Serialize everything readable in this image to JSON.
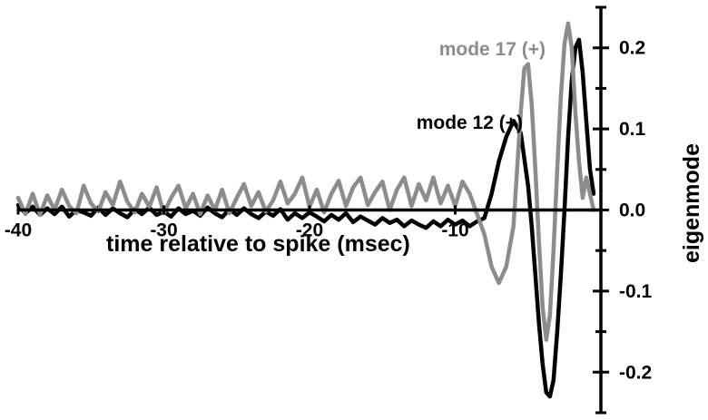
{
  "chart_data": {
    "type": "line",
    "title": "",
    "xlabel": "time relative to spike (msec)",
    "ylabel": "eigenmode",
    "xlim": [
      -40,
      0
    ],
    "ylim": [
      -0.25,
      0.25
    ],
    "x_ticks": [
      -40,
      -30,
      -20,
      -10
    ],
    "x_tick_labels": [
      "-40",
      "-30",
      "-20",
      "-10"
    ],
    "y_ticks": [
      -0.2,
      -0.1,
      0.0,
      0.1,
      0.2
    ],
    "y_tick_labels": [
      "-0.2",
      "-0.1",
      "0.0",
      "0.1",
      "0.2"
    ],
    "grid": false,
    "legend": "inline labels",
    "x_axis_position": "y=0",
    "y_axis_position": "right",
    "series": [
      {
        "name": "mode 12 (+)",
        "color": "#000000",
        "x": [
          -40.0,
          -39.5,
          -39.0,
          -38.5,
          -38.0,
          -37.5,
          -37.0,
          -36.5,
          -36.0,
          -35.5,
          -35.0,
          -34.5,
          -34.0,
          -33.5,
          -33.0,
          -32.5,
          -32.0,
          -31.5,
          -31.0,
          -30.5,
          -30.0,
          -29.5,
          -29.0,
          -28.5,
          -28.0,
          -27.5,
          -27.0,
          -26.5,
          -26.0,
          -25.5,
          -25.0,
          -24.5,
          -24.0,
          -23.5,
          -23.0,
          -22.5,
          -22.0,
          -21.5,
          -21.0,
          -20.5,
          -20.0,
          -19.5,
          -19.0,
          -18.5,
          -18.0,
          -17.5,
          -17.0,
          -16.5,
          -16.0,
          -15.5,
          -15.0,
          -14.5,
          -14.0,
          -13.5,
          -13.0,
          -12.5,
          -12.0,
          -11.5,
          -11.0,
          -10.5,
          -10.0,
          -9.5,
          -9.0,
          -8.5,
          -8.0,
          -7.5,
          -7.0,
          -6.5,
          -6.0,
          -5.5,
          -5.0,
          -4.75,
          -4.5,
          -4.25,
          -4.0,
          -3.75,
          -3.5,
          -3.25,
          -3.0,
          -2.75,
          -2.5,
          -2.25,
          -2.0,
          -1.75,
          -1.5,
          -1.25,
          -1.0,
          -0.75,
          -0.5
        ],
        "y": [
          0.006,
          -0.004,
          0.004,
          -0.006,
          0.002,
          -0.005,
          0.004,
          -0.008,
          0.0,
          -0.003,
          -0.007,
          0.003,
          -0.006,
          0.002,
          -0.004,
          -0.009,
          0.001,
          -0.005,
          0.003,
          -0.006,
          -0.002,
          -0.008,
          0.002,
          -0.005,
          -0.001,
          -0.007,
          0.003,
          -0.004,
          -0.009,
          0.001,
          -0.006,
          0.002,
          -0.005,
          -0.01,
          -0.002,
          -0.007,
          0.001,
          -0.012,
          -0.004,
          -0.01,
          -0.003,
          -0.008,
          -0.014,
          -0.006,
          -0.012,
          -0.004,
          -0.015,
          -0.008,
          -0.013,
          -0.018,
          -0.01,
          -0.016,
          -0.012,
          -0.02,
          -0.013,
          -0.018,
          -0.022,
          -0.014,
          -0.02,
          -0.012,
          -0.018,
          -0.013,
          -0.02,
          -0.014,
          -0.01,
          0.02,
          0.06,
          0.09,
          0.11,
          0.095,
          0.03,
          -0.02,
          -0.08,
          -0.14,
          -0.19,
          -0.225,
          -0.23,
          -0.21,
          -0.15,
          -0.08,
          0.0,
          0.09,
          0.16,
          0.2,
          0.21,
          0.17,
          0.11,
          0.05,
          0.02
        ]
      },
      {
        "name": "mode 17 (+)",
        "color": "#8c8c8c",
        "x": [
          -40.0,
          -39.5,
          -39.0,
          -38.5,
          -38.0,
          -37.5,
          -37.0,
          -36.5,
          -36.0,
          -35.5,
          -35.0,
          -34.5,
          -34.0,
          -33.5,
          -33.0,
          -32.5,
          -32.0,
          -31.5,
          -31.0,
          -30.5,
          -30.0,
          -29.5,
          -29.0,
          -28.5,
          -28.0,
          -27.5,
          -27.0,
          -26.5,
          -26.0,
          -25.5,
          -25.0,
          -24.5,
          -24.0,
          -23.5,
          -23.0,
          -22.5,
          -22.0,
          -21.5,
          -21.0,
          -20.5,
          -20.0,
          -19.5,
          -19.0,
          -18.5,
          -18.0,
          -17.5,
          -17.0,
          -16.5,
          -16.0,
          -15.5,
          -15.0,
          -14.5,
          -14.0,
          -13.5,
          -13.0,
          -12.5,
          -12.0,
          -11.5,
          -11.0,
          -10.5,
          -10.0,
          -9.5,
          -9.0,
          -8.5,
          -8.0,
          -7.5,
          -7.0,
          -6.5,
          -6.0,
          -5.75,
          -5.5,
          -5.25,
          -5.0,
          -4.75,
          -4.5,
          -4.25,
          -4.0,
          -3.75,
          -3.5,
          -3.25,
          -3.0,
          -2.75,
          -2.5,
          -2.25,
          -2.0,
          -1.75,
          -1.5,
          -1.25,
          -1.0,
          -0.75,
          -0.5
        ],
        "y": [
          0.015,
          -0.005,
          0.02,
          -0.006,
          0.018,
          0.0,
          0.025,
          0.005,
          -0.004,
          0.03,
          0.008,
          -0.002,
          0.022,
          0.006,
          0.035,
          0.01,
          -0.003,
          0.02,
          0.004,
          0.028,
          -0.004,
          0.015,
          0.03,
          0.002,
          0.02,
          -0.005,
          0.018,
          0.0,
          0.025,
          -0.004,
          0.015,
          0.032,
          0.005,
          0.022,
          -0.002,
          0.012,
          0.035,
          0.008,
          0.02,
          0.04,
          0.004,
          0.025,
          -0.003,
          0.02,
          0.036,
          0.005,
          0.028,
          0.04,
          0.006,
          0.022,
          0.035,
          0.0,
          0.025,
          0.04,
          0.005,
          0.032,
          0.012,
          0.04,
          0.008,
          0.03,
          0.005,
          0.035,
          0.02,
          -0.005,
          -0.03,
          -0.07,
          -0.09,
          -0.07,
          -0.02,
          0.05,
          0.12,
          0.175,
          0.18,
          0.13,
          0.05,
          -0.04,
          -0.12,
          -0.16,
          -0.13,
          -0.05,
          0.05,
          0.14,
          0.205,
          0.23,
          0.2,
          0.12,
          0.06,
          0.015,
          0.04,
          0.02,
          0.0
        ]
      }
    ]
  }
}
